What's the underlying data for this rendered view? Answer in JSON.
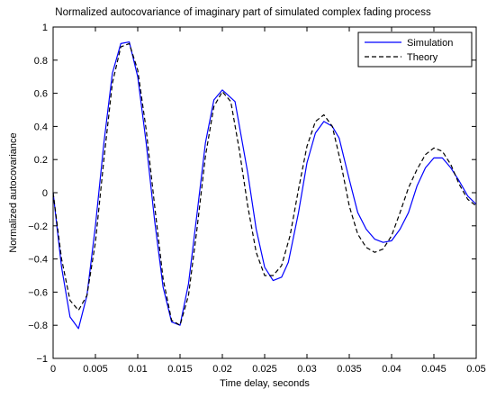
{
  "chart_data": {
    "type": "line",
    "title": "Normalized autocovariance of imaginary part of simulated complex fading process",
    "xlabel": "Time delay, seconds",
    "ylabel": "Normalized autocovariance",
    "xlim": [
      0,
      0.05
    ],
    "ylim": [
      -1,
      1
    ],
    "xticks": [
      0,
      0.005,
      0.01,
      0.015,
      0.02,
      0.025,
      0.03,
      0.035,
      0.04,
      0.045,
      0.05
    ],
    "xtick_labels": [
      "0",
      "0.005",
      "0.01",
      "0.015",
      "0.02",
      "0.025",
      "0.03",
      "0.035",
      "0.04",
      "0.045",
      "0.05"
    ],
    "yticks": [
      -1,
      -0.8,
      -0.6,
      -0.4,
      -0.2,
      0,
      0.2,
      0.4,
      0.6,
      0.8,
      1
    ],
    "ytick_labels": [
      "−1",
      "−0.8",
      "−0.6",
      "−0.4",
      "−0.2",
      "0",
      "0.2",
      "0.4",
      "0.6",
      "0.8",
      "1"
    ],
    "grid": false,
    "legend_position": "top-right",
    "series": [
      {
        "name": "Simulation",
        "color": "#0000ff",
        "style": "solid",
        "x": [
          0,
          0.001,
          0.002,
          0.003,
          0.004,
          0.005,
          0.006,
          0.007,
          0.008,
          0.009,
          0.01,
          0.011,
          0.012,
          0.013,
          0.014,
          0.015,
          0.016,
          0.017,
          0.018,
          0.019,
          0.02,
          0.0215,
          0.023,
          0.024,
          0.025,
          0.026,
          0.027,
          0.0278,
          0.029,
          0.03,
          0.031,
          0.032,
          0.033,
          0.0338,
          0.035,
          0.036,
          0.037,
          0.038,
          0.039,
          0.04,
          0.041,
          0.042,
          0.043,
          0.044,
          0.045,
          0.046,
          0.047,
          0.048,
          0.049,
          0.05
        ],
        "y": [
          0.0,
          -0.45,
          -0.75,
          -0.82,
          -0.62,
          -0.2,
          0.3,
          0.72,
          0.9,
          0.91,
          0.7,
          0.3,
          -0.17,
          -0.57,
          -0.78,
          -0.8,
          -0.55,
          -0.13,
          0.3,
          0.56,
          0.62,
          0.55,
          0.12,
          -0.22,
          -0.45,
          -0.53,
          -0.51,
          -0.42,
          -0.12,
          0.18,
          0.36,
          0.43,
          0.4,
          0.33,
          0.08,
          -0.12,
          -0.22,
          -0.28,
          -0.3,
          -0.29,
          -0.22,
          -0.12,
          0.04,
          0.15,
          0.21,
          0.21,
          0.15,
          0.07,
          -0.02,
          -0.07
        ]
      },
      {
        "name": "Theory",
        "color": "#000000",
        "style": "dashed",
        "x": [
          0,
          0.001,
          0.002,
          0.003,
          0.004,
          0.005,
          0.006,
          0.007,
          0.008,
          0.009,
          0.01,
          0.011,
          0.012,
          0.013,
          0.014,
          0.015,
          0.016,
          0.017,
          0.018,
          0.019,
          0.02,
          0.021,
          0.022,
          0.023,
          0.024,
          0.025,
          0.026,
          0.027,
          0.028,
          0.029,
          0.03,
          0.031,
          0.032,
          0.033,
          0.034,
          0.035,
          0.036,
          0.037,
          0.038,
          0.039,
          0.04,
          0.041,
          0.042,
          0.043,
          0.044,
          0.045,
          0.046,
          0.047,
          0.048,
          0.049,
          0.05
        ],
        "y": [
          0.0,
          -0.4,
          -0.65,
          -0.71,
          -0.62,
          -0.3,
          0.2,
          0.66,
          0.88,
          0.9,
          0.74,
          0.38,
          -0.08,
          -0.52,
          -0.77,
          -0.8,
          -0.62,
          -0.22,
          0.22,
          0.52,
          0.61,
          0.55,
          0.26,
          -0.08,
          -0.36,
          -0.5,
          -0.5,
          -0.44,
          -0.26,
          0.02,
          0.28,
          0.43,
          0.47,
          0.4,
          0.18,
          -0.08,
          -0.25,
          -0.33,
          -0.36,
          -0.34,
          -0.26,
          -0.12,
          0.03,
          0.14,
          0.23,
          0.27,
          0.25,
          0.17,
          0.05,
          -0.04,
          -0.08
        ]
      }
    ]
  }
}
